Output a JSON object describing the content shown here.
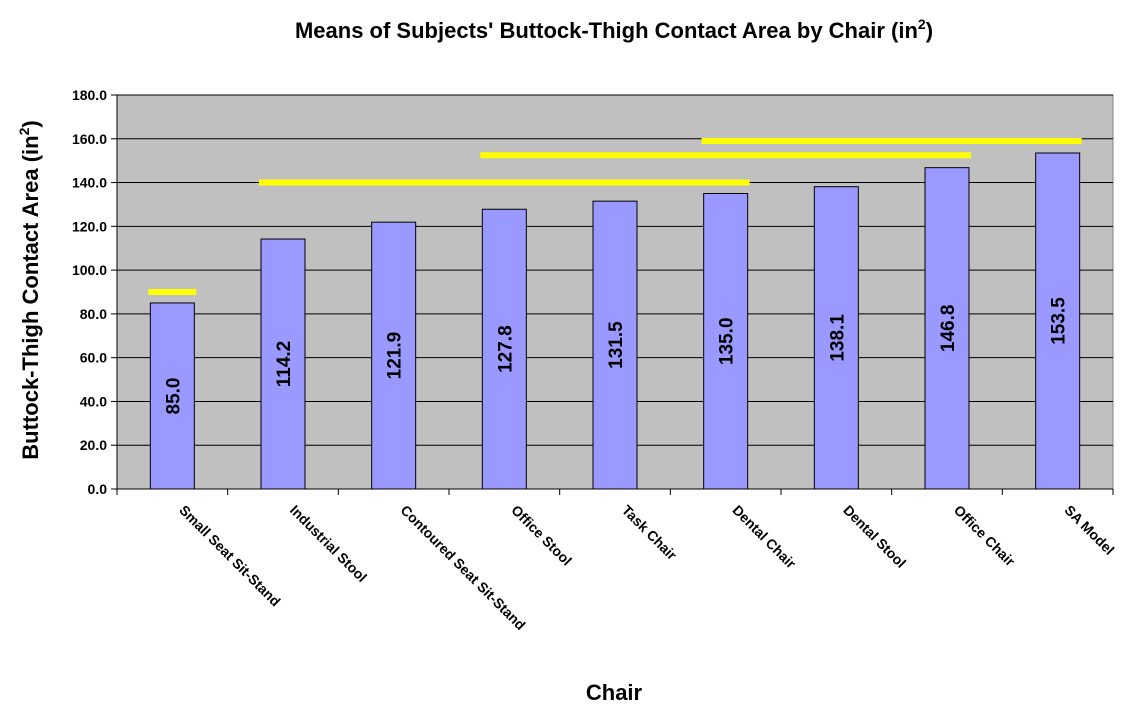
{
  "chart_data": {
    "type": "bar",
    "title": "Means of Subjects' Buttock-Thigh Contact Area by Chair (in",
    "title_superscript": "2",
    "title_suffix": ")",
    "xlabel": "Chair",
    "ylabel": "Buttock-Thigh Contact Area (in",
    "ylabel_superscript": "2",
    "ylabel_suffix": ")",
    "ylim": [
      0,
      180
    ],
    "ytick_step": 20,
    "ytick_labels": [
      "0.0",
      "20.0",
      "40.0",
      "60.0",
      "80.0",
      "100.0",
      "120.0",
      "140.0",
      "160.0",
      "180.0"
    ],
    "grid": true,
    "legend": "none",
    "categories": [
      "Small Seat Sit-Stand",
      "Industrial Stool",
      "Contoured Seat Sit-Stand",
      "Office Stool",
      "Task Chair",
      "Dental Chair",
      "Dental Stool",
      "Office Chair",
      "SA Model"
    ],
    "values": [
      85.0,
      114.2,
      121.9,
      127.8,
      131.5,
      135.0,
      138.1,
      146.8,
      153.5
    ],
    "data_labels": [
      "85.0",
      "114.2",
      "121.9",
      "127.8",
      "131.5",
      "135.0",
      "138.1",
      "146.8",
      "153.5"
    ],
    "significance_groups": [
      {
        "from_category": 0,
        "to_category": 0,
        "y": 90
      },
      {
        "from_category": 1,
        "to_category": 5,
        "y": 140
      },
      {
        "from_category": 3,
        "to_category": 7,
        "y": 152.5
      },
      {
        "from_category": 5,
        "to_category": 8,
        "y": 159
      }
    ],
    "colors": {
      "bar_fill": "#9999FF",
      "bar_stroke": "#000000",
      "plot_background": "#C0C0C0",
      "gridline": "#000000",
      "group_line": "#FFFF00"
    }
  }
}
